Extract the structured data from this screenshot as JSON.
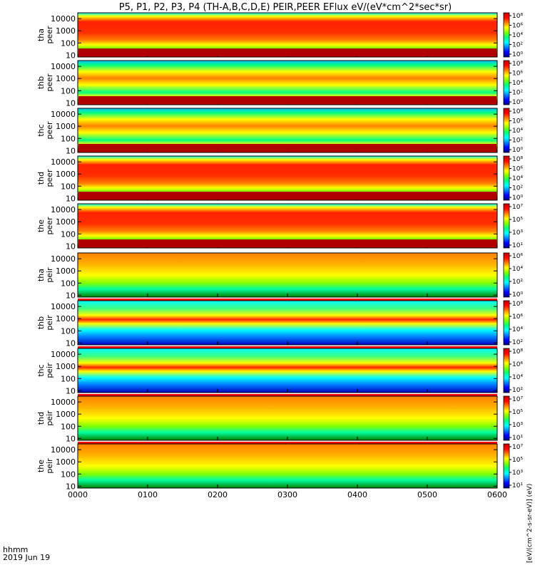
{
  "chart_data": {
    "type": "heatmap",
    "title": "P5, P1, P2, P3, P4 (TH-A,B,C,D,E) PEIR,PEER EFlux eV/(eV*cm^2*sec*sr)",
    "xlabel_lines": [
      "hhmm",
      "2019 Jun 19"
    ],
    "x_ticks": [
      "0000",
      "0100",
      "0200",
      "0300",
      "0400",
      "0500",
      "0600"
    ],
    "y_ticks": [
      "10000",
      "1000",
      "100",
      "10"
    ],
    "y_scale": "log",
    "y_range_eV": [
      7,
      30000
    ],
    "x_range_hhmm": [
      "0000",
      "0600"
    ],
    "colorbar_label": "[eV/(cm^2-s-sr-eV)] (eV)",
    "panels": [
      {
        "id": "tha-peer",
        "line1": "tha",
        "line2": "peer",
        "kind": "electron",
        "cb_ticks": [
          "10⁸",
          "10⁶",
          "10⁴",
          "10²",
          "10⁰"
        ]
      },
      {
        "id": "thb-peer",
        "line1": "thb",
        "line2": "peer",
        "kind": "electron",
        "cb_ticks": [
          "10⁸",
          "10⁶",
          "10⁴",
          "10²",
          "10⁰"
        ]
      },
      {
        "id": "thc-peer",
        "line1": "thc",
        "line2": "peer",
        "kind": "electron",
        "cb_ticks": [
          "10⁸",
          "10⁶",
          "10⁴",
          "10²",
          "10⁰"
        ]
      },
      {
        "id": "thd-peer",
        "line1": "thd",
        "line2": "peer",
        "kind": "electron",
        "cb_ticks": [
          "10⁸",
          "10⁶",
          "10⁴",
          "10²",
          "10⁰"
        ]
      },
      {
        "id": "the-peer",
        "line1": "the",
        "line2": "peer",
        "kind": "electron",
        "cb_ticks": [
          "10⁷",
          "10⁵",
          "10³",
          "10¹"
        ]
      },
      {
        "id": "tha-peir",
        "line1": "tha",
        "line2": "peir",
        "kind": "ion",
        "cb_ticks": [
          "10⁶",
          "10⁴",
          "10²",
          "10⁰"
        ]
      },
      {
        "id": "thb-peir",
        "line1": "thb",
        "line2": "peir",
        "kind": "ion",
        "cb_ticks": [
          "10⁸",
          "10⁶",
          "10⁴",
          "10²"
        ]
      },
      {
        "id": "thc-peir",
        "line1": "thc",
        "line2": "peir",
        "kind": "ion",
        "cb_ticks": [
          "10⁸",
          "10⁶",
          "10⁴",
          "10²"
        ]
      },
      {
        "id": "thd-peir",
        "line1": "thd",
        "line2": "peir",
        "kind": "ion",
        "cb_ticks": [
          "10⁷",
          "10⁵",
          "10³",
          "10¹"
        ]
      },
      {
        "id": "the-peir",
        "line1": "the",
        "line2": "peir",
        "kind": "ion",
        "cb_ticks": [
          "10⁷",
          "10⁵",
          "10³",
          "10¹"
        ]
      }
    ],
    "colormap": [
      "#00007f",
      "#0000ff",
      "#0080ff",
      "#00ffff",
      "#00ff80",
      "#80ff00",
      "#ffff00",
      "#ff8000",
      "#ff0000",
      "#c00000"
    ],
    "grid": false
  }
}
